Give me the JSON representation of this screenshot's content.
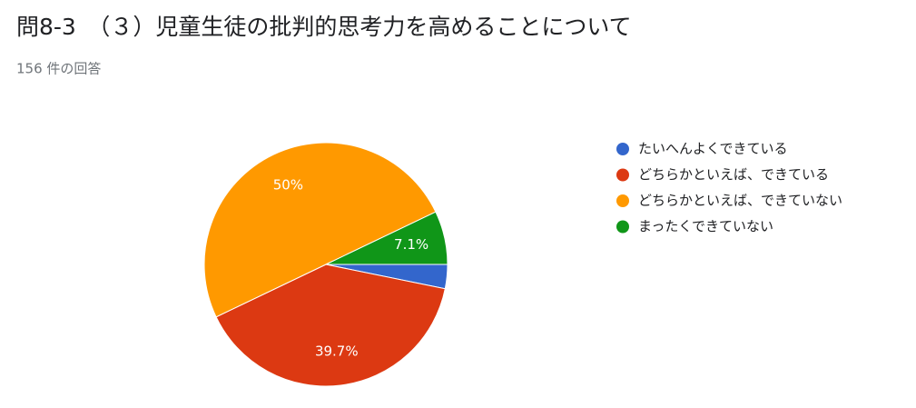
{
  "chart_data": {
    "type": "pie",
    "title": "問8-3　（３）児童生徒の批判的思考力を高めることについて",
    "subtitle": "156 件の回答",
    "categories": [
      "たいへんよくできている",
      "どちらかといえば、できている",
      "どちらかといえば、できていない",
      "まったくできていない"
    ],
    "values": [
      3.2,
      39.7,
      50,
      7.1
    ],
    "value_labels": [
      null,
      "39.7%",
      "50%",
      "7.1%"
    ],
    "colors": [
      "#3366cc",
      "#dc3912",
      "#ff9900",
      "#109618"
    ],
    "legend": "right"
  }
}
